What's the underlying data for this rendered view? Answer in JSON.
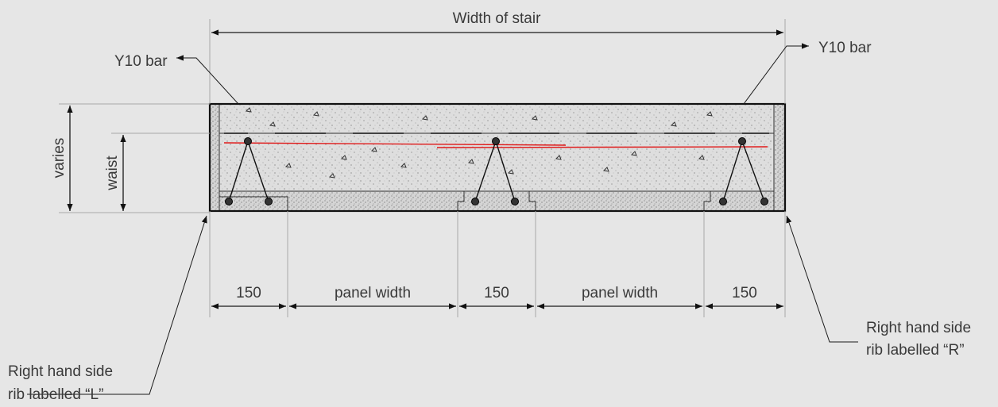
{
  "labels": {
    "width_of_stair": "Width of stair",
    "y10_bar_left": "Y10 bar",
    "y10_bar_right": "Y10 bar",
    "varies": "varies",
    "waist": "waist",
    "dim_150_1": "150",
    "panel_width_1": "panel width",
    "dim_150_2": "150",
    "panel_width_2": "panel width",
    "dim_150_3": "150",
    "rib_left_line1": "Right hand side",
    "rib_left_line2": "rib labelled “L”",
    "rib_right_line1": "Right hand side",
    "rib_right_line2": "rib labelled “R”"
  },
  "colors": {
    "background": "#e6e6e6",
    "concrete": "#dcdcdc",
    "rebar_highlight": "#e01818",
    "line": "#111111"
  }
}
